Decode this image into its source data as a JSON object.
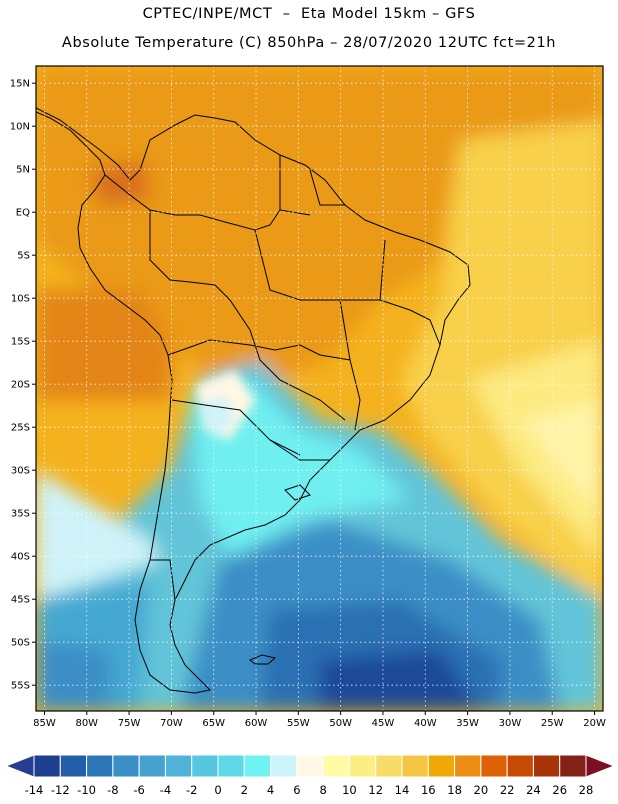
{
  "header": {
    "line1": "CPTEC/INPE/MCT  –  Eta Model 15km – GFS",
    "line2": "Absolute Temperature (C) 850hPa – 28/07/2020 12UTC fct=21h"
  },
  "map": {
    "lon_range": [
      -86,
      -19
    ],
    "lat_range": [
      -58,
      17
    ],
    "lat_ticks": [
      {
        "value": 15,
        "label": "15N"
      },
      {
        "value": 10,
        "label": "10N"
      },
      {
        "value": 5,
        "label": "5N"
      },
      {
        "value": 0,
        "label": "EQ"
      },
      {
        "value": -5,
        "label": "5S"
      },
      {
        "value": -10,
        "label": "10S"
      },
      {
        "value": -15,
        "label": "15S"
      },
      {
        "value": -20,
        "label": "20S"
      },
      {
        "value": -25,
        "label": "25S"
      },
      {
        "value": -30,
        "label": "30S"
      },
      {
        "value": -35,
        "label": "35S"
      },
      {
        "value": -40,
        "label": "40S"
      },
      {
        "value": -45,
        "label": "45S"
      },
      {
        "value": -50,
        "label": "50S"
      },
      {
        "value": -55,
        "label": "55S"
      }
    ],
    "lon_ticks": [
      {
        "value": -85,
        "label": "85W"
      },
      {
        "value": -80,
        "label": "80W"
      },
      {
        "value": -75,
        "label": "75W"
      },
      {
        "value": -70,
        "label": "70W"
      },
      {
        "value": -65,
        "label": "65W"
      },
      {
        "value": -60,
        "label": "60W"
      },
      {
        "value": -55,
        "label": "55W"
      },
      {
        "value": -50,
        "label": "50W"
      },
      {
        "value": -45,
        "label": "45W"
      },
      {
        "value": -40,
        "label": "40W"
      },
      {
        "value": -35,
        "label": "35W"
      },
      {
        "value": -30,
        "label": "30W"
      },
      {
        "value": -25,
        "label": "25W"
      },
      {
        "value": -20,
        "label": "20W"
      }
    ],
    "gridlines": "dotted"
  },
  "colorbar": {
    "labels": [
      "-14",
      "-12",
      "-10",
      "-8",
      "-6",
      "-4",
      "-2",
      "0",
      "2",
      "4",
      "6",
      "8",
      "10",
      "12",
      "14",
      "16",
      "18",
      "20",
      "22",
      "24",
      "26",
      "28"
    ],
    "colors": [
      "#1d3f8f",
      "#235fa8",
      "#2c77b8",
      "#3a8fc6",
      "#45a2cf",
      "#4fb4d8",
      "#57c6e0",
      "#5fd8e8",
      "#6ef2f2",
      "#cdf3fb",
      "#fff8e4",
      "#fffaa4",
      "#fdee84",
      "#f8dc68",
      "#f4c643",
      "#efaa07",
      "#ea8e14",
      "#dd6205",
      "#c64a03",
      "#a93409",
      "#852116"
    ],
    "under_color": "#263d90",
    "over_color": "#7b1025"
  }
}
